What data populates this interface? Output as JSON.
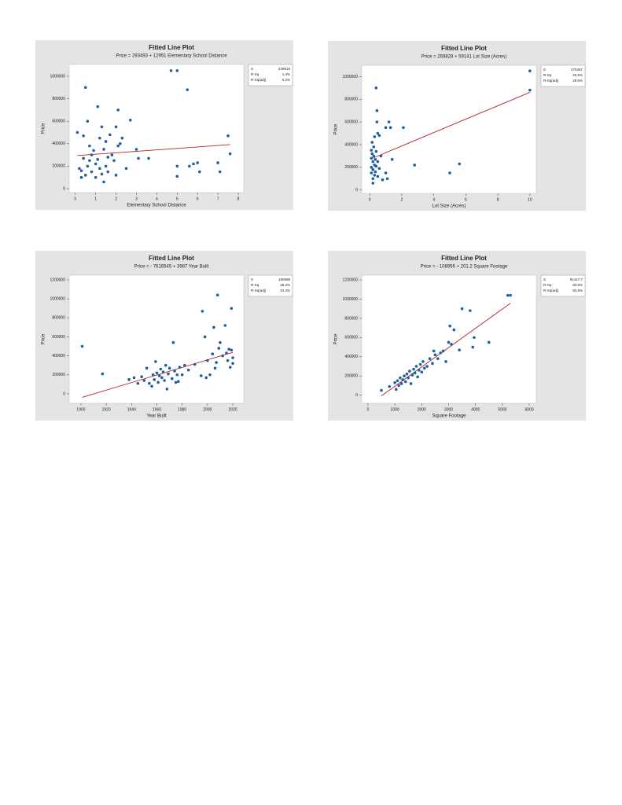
{
  "chart_data": [
    {
      "type": "scatter",
      "title": "Fitted Line Plot",
      "subtitle": "Price = 293493 + 12951 Elementary School Distance",
      "x_label": "Elementary School Distance",
      "y_label": "Price",
      "color": "#1f5f9e",
      "x": [
        0.1,
        0.2,
        0.3,
        0.3,
        0.4,
        0.4,
        0.5,
        0.5,
        0.6,
        0.6,
        0.7,
        0.7,
        0.8,
        0.8,
        0.9,
        1.0,
        1.0,
        1.1,
        1.1,
        1.2,
        1.2,
        1.3,
        1.3,
        1.4,
        1.4,
        1.5,
        1.5,
        1.6,
        1.6,
        1.7,
        1.8,
        1.9,
        2.0,
        2.0,
        2.1,
        2.1,
        2.2,
        2.3,
        2.5,
        2.7,
        3.0,
        3.1,
        3.6,
        4.7,
        5.0,
        5.0,
        5.0,
        5.5,
        5.6,
        5.8,
        6.0,
        6.1,
        7.0,
        7.1,
        7.5,
        7.6
      ],
      "values": [
        500000,
        180000,
        160000,
        100000,
        270000,
        470000,
        900000,
        120000,
        600000,
        200000,
        250000,
        380000,
        150000,
        300000,
        340000,
        220000,
        100000,
        730000,
        260000,
        180000,
        450000,
        550000,
        130000,
        350000,
        60000,
        200000,
        420000,
        280000,
        150000,
        480000,
        300000,
        250000,
        550000,
        120000,
        380000,
        700000,
        400000,
        450000,
        180000,
        610000,
        350000,
        270000,
        270000,
        1050000,
        1050000,
        200000,
        110000,
        880000,
        200000,
        220000,
        230000,
        150000,
        230000,
        150000,
        470000,
        310000
      ],
      "fit": {
        "intercept": 293493,
        "slope": 12951,
        "color": "#b22222"
      },
      "xlim": [
        -0.3,
        8.27
      ],
      "ylim": [
        -35000,
        1105000
      ],
      "xticks": [
        0,
        1,
        2,
        3,
        4,
        5,
        6,
        7,
        8
      ],
      "yticks": [
        0,
        200000,
        400000,
        600000,
        800000,
        1000000
      ],
      "stats": [
        {
          "label": "S",
          "value": "249619"
        },
        {
          "label": "R-Sq",
          "value": "1.4%"
        },
        {
          "label": "R-Sq(adj)",
          "value": "0.2%"
        }
      ]
    },
    {
      "type": "scatter",
      "title": "Fitted Line Plot",
      "subtitle": "Price = 269828 + 59141 Lot Size (Acres)",
      "x_label": "Lot Size (Acres)",
      "y_label": "Price",
      "color": "#1f5f9e",
      "x": [
        0.1,
        0.1,
        0.1,
        0.1,
        0.15,
        0.15,
        0.2,
        0.2,
        0.2,
        0.2,
        0.25,
        0.25,
        0.3,
        0.3,
        0.3,
        0.35,
        0.35,
        0.4,
        0.4,
        0.4,
        0.45,
        0.45,
        0.5,
        0.5,
        0.5,
        0.6,
        0.6,
        0.7,
        0.8,
        1.0,
        1.0,
        1.1,
        1.2,
        1.3,
        1.4,
        2.1,
        2.8,
        5.0,
        5.6,
        10.0,
        10.0
      ],
      "values": [
        350000,
        280000,
        200000,
        150000,
        420000,
        320000,
        250000,
        180000,
        100000,
        60000,
        380000,
        300000,
        220000,
        470000,
        130000,
        270000,
        160000,
        900000,
        340000,
        210000,
        700000,
        600000,
        500000,
        250000,
        120000,
        480000,
        190000,
        300000,
        90000,
        550000,
        150000,
        100000,
        600000,
        550000,
        270000,
        550000,
        220000,
        150000,
        230000,
        1050000,
        880000
      ],
      "fit": {
        "intercept": 269828,
        "slope": 59141,
        "color": "#b22222"
      },
      "xlim": [
        -0.5,
        10.4
      ],
      "ylim": [
        -30000,
        1100000
      ],
      "xticks": [
        0,
        2,
        4,
        6,
        8,
        10
      ],
      "yticks": [
        0,
        200000,
        400000,
        600000,
        800000,
        1000000
      ],
      "stats": [
        {
          "label": "S",
          "value": "175367"
        },
        {
          "label": "R-Sq",
          "value": "29.5%"
        },
        {
          "label": "R-Sq(adj)",
          "value": "28.6%"
        }
      ]
    },
    {
      "type": "scatter",
      "title": "Fitted Line Plot",
      "subtitle": "Price = - 7616545 + 3987 Year Built",
      "x_label": "Year Built",
      "y_label": "Price",
      "color": "#1f5f9e",
      "x": [
        1901,
        1917,
        1938,
        1942,
        1945,
        1948,
        1950,
        1952,
        1954,
        1956,
        1957,
        1958,
        1959,
        1960,
        1961,
        1962,
        1963,
        1964,
        1965,
        1966,
        1967,
        1968,
        1969,
        1970,
        1972,
        1973,
        1974,
        1975,
        1976,
        1977,
        1978,
        1980,
        1982,
        1985,
        1990,
        1995,
        1996,
        1998,
        1999,
        2000,
        2002,
        2004,
        2005,
        2006,
        2007,
        2008,
        2009,
        2010,
        2012,
        2014,
        2015,
        2016,
        2017,
        2018,
        2019,
        2019,
        2020,
        2020
      ],
      "values": [
        500000,
        210000,
        150000,
        170000,
        110000,
        180000,
        140000,
        270000,
        110000,
        80000,
        200000,
        150000,
        340000,
        220000,
        120000,
        190000,
        260000,
        170000,
        230000,
        140000,
        300000,
        50000,
        210000,
        270000,
        160000,
        540000,
        240000,
        120000,
        200000,
        130000,
        280000,
        200000,
        300000,
        250000,
        310000,
        190000,
        870000,
        600000,
        170000,
        350000,
        200000,
        420000,
        700000,
        270000,
        330000,
        1040000,
        480000,
        540000,
        400000,
        720000,
        430000,
        350000,
        470000,
        280000,
        900000,
        460000,
        320000,
        380000
      ],
      "fit": {
        "intercept": -7616545,
        "slope": 3987,
        "color": "#b22222"
      },
      "xlim": [
        1890.7,
        2028.7
      ],
      "ylim": [
        -100000,
        1250000
      ],
      "xticks": [
        1900,
        1920,
        1940,
        1960,
        1980,
        2000,
        2020
      ],
      "yticks": [
        0,
        200000,
        400000,
        600000,
        800000,
        1000000,
        1200000
      ],
      "stats": [
        {
          "label": "S",
          "value": "180688"
        },
        {
          "label": "R-Sq",
          "value": "25.2%"
        },
        {
          "label": "R-Sq(adj)",
          "value": "24.4%"
        }
      ]
    },
    {
      "type": "scatter",
      "title": "Fitted Line Plot",
      "subtitle": "Price = - 108956 + 201.2 Square Footage",
      "x_label": "Square Footage",
      "y_label": "Price",
      "color": "#1f5f9e",
      "x": [
        500,
        800,
        1000,
        1050,
        1100,
        1150,
        1200,
        1250,
        1300,
        1350,
        1400,
        1450,
        1500,
        1550,
        1600,
        1650,
        1700,
        1750,
        1800,
        1850,
        1900,
        1950,
        2000,
        2050,
        2100,
        2200,
        2300,
        2400,
        2450,
        2500,
        2600,
        2700,
        2800,
        2900,
        3000,
        3050,
        3100,
        3200,
        3400,
        3500,
        3800,
        3900,
        3950,
        4500,
        5200,
        5300
      ],
      "values": [
        50000,
        90000,
        130000,
        60000,
        150000,
        100000,
        180000,
        120000,
        160000,
        200000,
        140000,
        220000,
        180000,
        250000,
        120000,
        210000,
        270000,
        230000,
        300000,
        190000,
        260000,
        320000,
        240000,
        350000,
        280000,
        300000,
        380000,
        330000,
        460000,
        420000,
        380000,
        440000,
        460000,
        350000,
        550000,
        720000,
        530000,
        680000,
        470000,
        900000,
        880000,
        500000,
        600000,
        550000,
        1040000,
        1040000
      ],
      "fit": {
        "intercept": -108956,
        "slope": 201.2,
        "color": "#b22222"
      },
      "xlim": [
        -230,
        6260
      ],
      "ylim": [
        -85000,
        1250000
      ],
      "xticks": [
        0,
        1000,
        2000,
        3000,
        4000,
        5000,
        6000
      ],
      "yticks": [
        0,
        200000,
        400000,
        600000,
        800000,
        1000000,
        1200000
      ],
      "stats": [
        {
          "label": "S",
          "value": "91447.7"
        },
        {
          "label": "R-Sq",
          "value": "84.8%"
        },
        {
          "label": "R-Sq(adj)",
          "value": "84.6%"
        }
      ]
    }
  ]
}
